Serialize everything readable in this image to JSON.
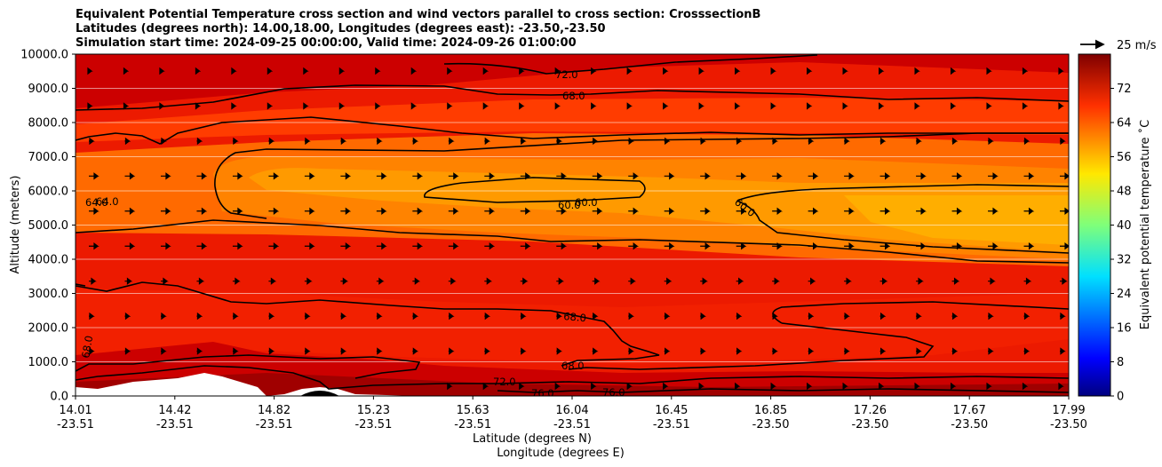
{
  "title": {
    "line1": "Equivalent Potential Temperature cross section and wind vectors parallel to cross section: CrosssectionB",
    "line2": "Latitudes (degrees north): 14.00,18.00, Longitudes (degrees east): -23.50,-23.50",
    "line3": "Simulation start time: 2024-09-25 00:00:00, Valid time: 2024-09-26 01:00:00"
  },
  "quiver_key": {
    "label": "25 m/s"
  },
  "chart_data": {
    "type": "heatmap",
    "subtype": "filled-contour cross section with contour lines and wind vectors",
    "title": "Equivalent Potential Temperature cross section and wind vectors parallel to cross section: CrosssectionB",
    "xlabel": "Latitude (degrees N)",
    "xlabel2": "Longitude (degrees E)",
    "ylabel": "Altitude (meters)",
    "ylim": [
      0,
      10000
    ],
    "yticks": [
      "0.0",
      "1000.0",
      "2000.0",
      "3000.0",
      "4000.0",
      "5000.0",
      "6000.0",
      "7000.0",
      "8000.0",
      "9000.0",
      "10000.0"
    ],
    "xticks_lat": [
      "14.01",
      "14.42",
      "14.82",
      "15.23",
      "15.63",
      "16.04",
      "16.45",
      "16.85",
      "17.26",
      "17.67",
      "17.99"
    ],
    "xticks_lon": [
      "-23.51",
      "-23.51",
      "-23.51",
      "-23.51",
      "-23.51",
      "-23.51",
      "-23.51",
      "-23.50",
      "-23.50",
      "-23.50",
      "-23.50"
    ],
    "grid": "horizontal",
    "colorbar": {
      "label": "Equivalent potential temperature $^\\circ$C",
      "label_display": "Equivalent potential temperature ˚C",
      "range": [
        0,
        80
      ],
      "ticks": [
        "0",
        "8",
        "16",
        "24",
        "32",
        "40",
        "48",
        "56",
        "64",
        "72"
      ],
      "colormap": "jet"
    },
    "contour_labels": [
      "72.0",
      "68.0",
      "64.0",
      "64.0",
      "60.0",
      "60.0",
      "60.0",
      "68.0",
      "68.0",
      "68.0",
      "72.0",
      "76.0",
      "76.0"
    ],
    "approx_field_by_altitude_m": [
      {
        "altitude": 500,
        "value": 74
      },
      {
        "altitude": 1000,
        "value": 71
      },
      {
        "altitude": 2000,
        "value": 69
      },
      {
        "altitude": 3000,
        "value": 67
      },
      {
        "altitude": 4000,
        "value": 63
      },
      {
        "altitude": 5000,
        "value": 59
      },
      {
        "altitude": 6000,
        "value": 60
      },
      {
        "altitude": 7000,
        "value": 62
      },
      {
        "altitude": 8000,
        "value": 66
      },
      {
        "altitude": 9000,
        "value": 69
      },
      {
        "altitude": 10000,
        "value": 73
      }
    ],
    "wind_vector_reference": "25 m/s"
  }
}
